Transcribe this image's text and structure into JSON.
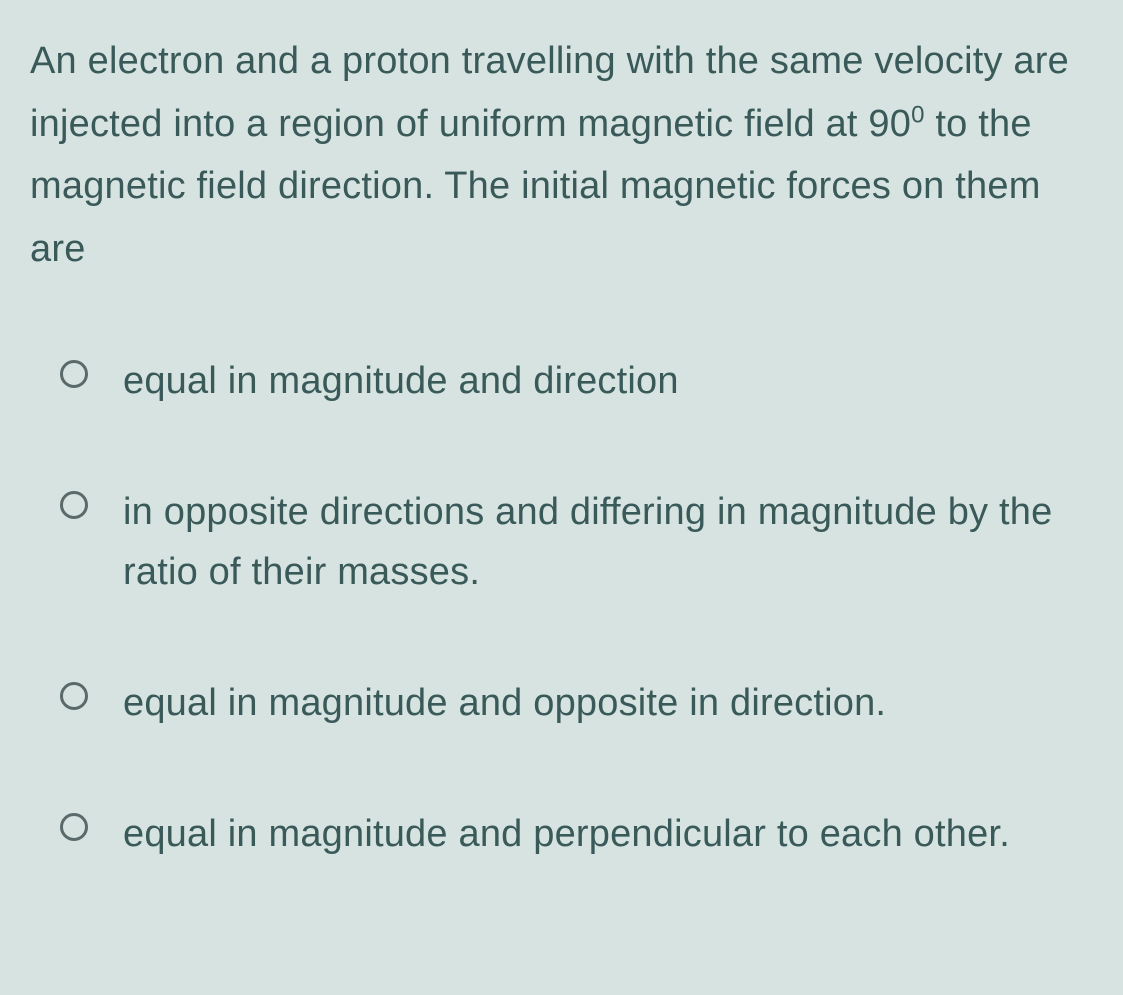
{
  "question": {
    "text_before_sup": "An electron and a proton travelling with the same velocity are injected into a region of uniform magnetic field at 90",
    "sup": "0",
    "text_after_sup": " to the magnetic field direction. The initial magnetic forces on them are"
  },
  "options": [
    {
      "text": "equal in magnitude and direction",
      "selected": false
    },
    {
      "text": "in opposite directions and differing in magnitude by the ratio of their masses.",
      "selected": false
    },
    {
      "text": "equal in magnitude and opposite in direction.",
      "selected": false
    },
    {
      "text": "equal in magnitude and perpendicular to each other.",
      "selected": false
    }
  ],
  "colors": {
    "background": "#d6e3e1",
    "text": "#3a5a5a",
    "radio_border": "#5a6a6a"
  },
  "typography": {
    "question_fontsize": 38,
    "option_fontsize": 38,
    "line_height": 1.6
  }
}
